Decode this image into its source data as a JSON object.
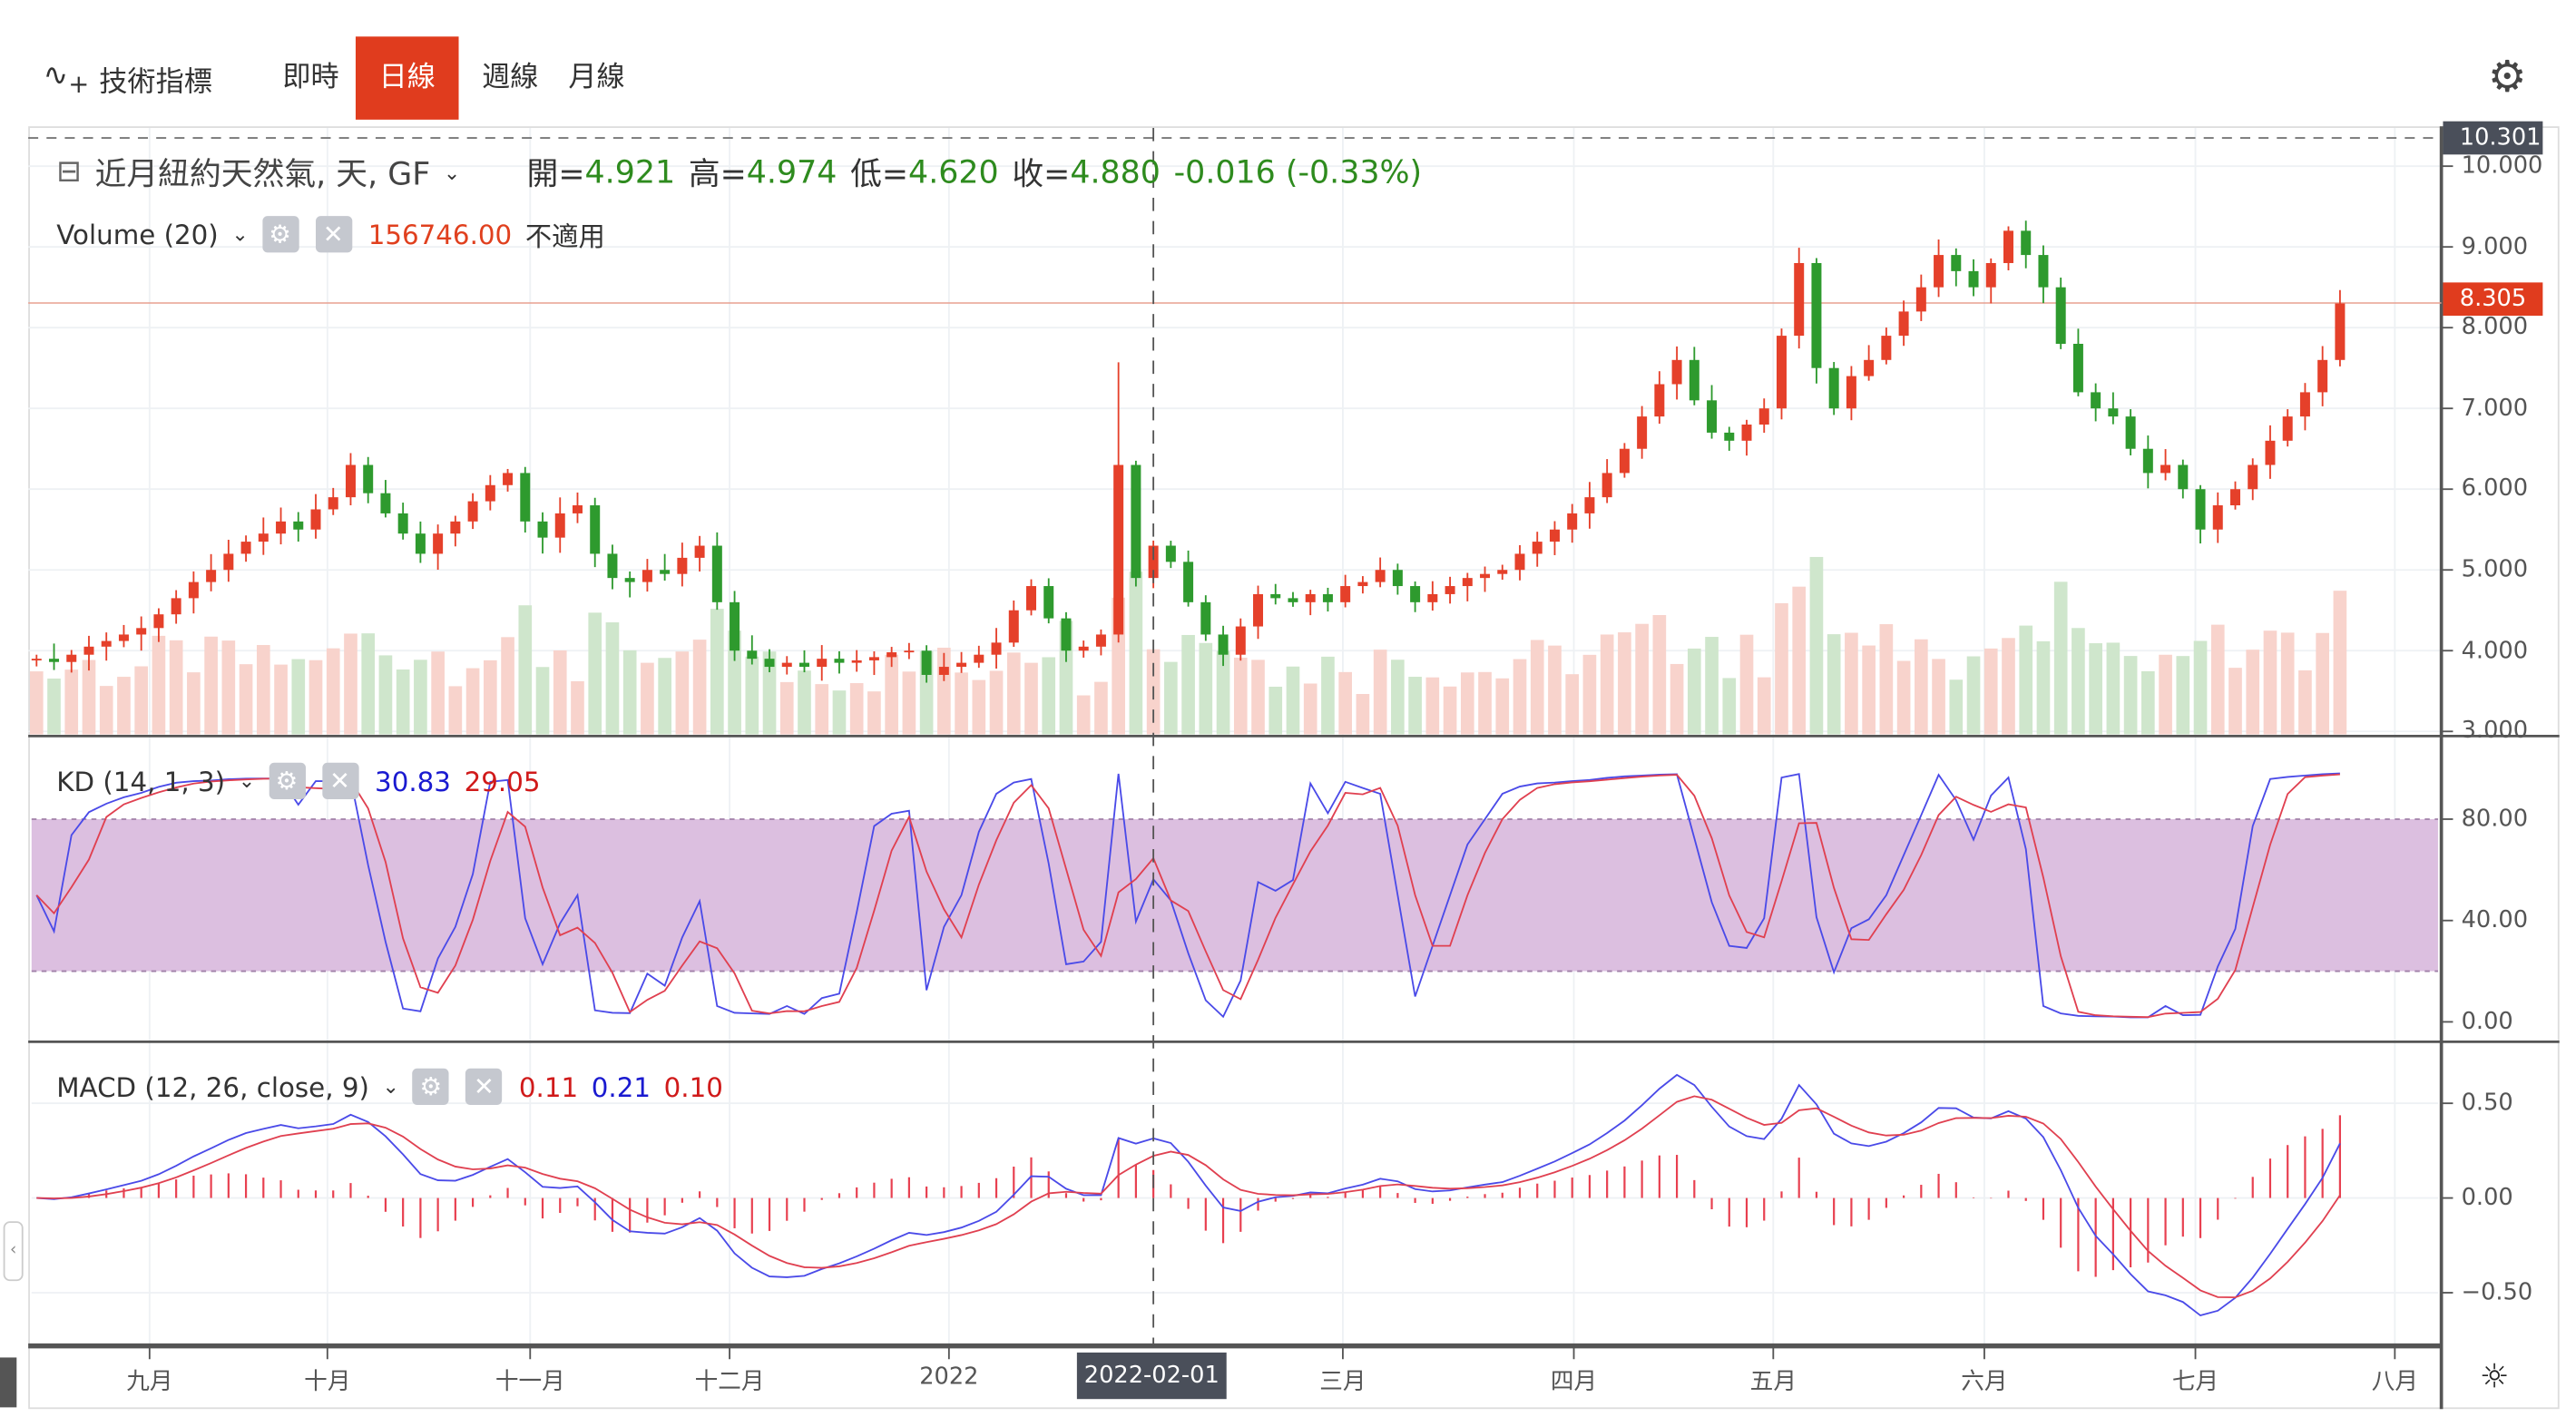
{
  "toolbar": {
    "indicator_label": "技術指標",
    "tabs": [
      {
        "label": "即時"
      },
      {
        "label": "日線",
        "active": true
      },
      {
        "label": "週線"
      },
      {
        "label": "月線"
      }
    ]
  },
  "legend": {
    "symbol": "近月紐約天然氣, 天, GF",
    "open_label": "開=",
    "open": "4.921",
    "high_label": "高=",
    "high": "4.974",
    "low_label": "低=",
    "low": "4.620",
    "close_label": "收=",
    "close": "4.880",
    "change": "-0.016 (-0.33%)"
  },
  "volume": {
    "label": "Volume (20)",
    "value": "156746.00",
    "na": "不適用"
  },
  "kd": {
    "label": "KD (14, 1, 3)",
    "k": "30.83",
    "d": "29.05"
  },
  "macd": {
    "label": "MACD (12, 26, close, 9)",
    "hist": "0.11",
    "macd": "0.21",
    "signal": "0.10"
  },
  "price_axis": {
    "labels": [
      "10.000",
      "9.000",
      "8.000",
      "7.000",
      "6.000",
      "5.000",
      "4.000",
      "3.000"
    ],
    "high_tag": "10.301",
    "last_tag": "8.305"
  },
  "kd_axis": [
    "80.00",
    "40.00",
    "0.00"
  ],
  "macd_axis": [
    "0.50",
    "0.00",
    "−0.50"
  ],
  "time_axis": [
    "九月",
    "十月",
    "十一月",
    "十二月",
    "2022",
    "三月",
    "四月",
    "五月",
    "六月",
    "七月",
    "八月"
  ],
  "crosshair_label": "2022-02-01",
  "colors": {
    "up": "#e5402a",
    "down": "#2e9a2e",
    "accent": "#e03c1e",
    "kd_k": "#4a4ae8",
    "kd_d": "#e04050",
    "band": "#dcbfe0"
  },
  "chart_data": {
    "type": "candlestick",
    "ylim": [
      3,
      10.3
    ],
    "closes": [
      3.9,
      3.86,
      3.95,
      4.05,
      4.12,
      4.2,
      4.28,
      4.45,
      4.65,
      4.85,
      5.0,
      5.2,
      5.35,
      5.45,
      5.6,
      5.5,
      5.75,
      5.9,
      6.3,
      5.95,
      5.7,
      5.45,
      5.2,
      5.45,
      5.6,
      5.85,
      6.05,
      6.2,
      5.6,
      5.4,
      5.7,
      5.8,
      5.2,
      4.9,
      4.85,
      5.0,
      4.95,
      5.15,
      5.3,
      4.6,
      4.0,
      3.9,
      3.8,
      3.85,
      3.8,
      3.9,
      3.85,
      3.88,
      3.92,
      3.98,
      4.0,
      3.7,
      3.8,
      3.85,
      3.95,
      4.1,
      4.5,
      4.8,
      4.4,
      4.0,
      4.05,
      4.2,
      6.3,
      4.9,
      5.3,
      5.1,
      4.6,
      4.2,
      3.95,
      4.3,
      4.7,
      4.65,
      4.6,
      4.7,
      4.6,
      4.8,
      4.85,
      5.0,
      4.8,
      4.6,
      4.7,
      4.8,
      4.9,
      4.95,
      5.0,
      5.2,
      5.35,
      5.5,
      5.7,
      5.9,
      6.2,
      6.5,
      6.9,
      7.3,
      7.6,
      7.1,
      6.7,
      6.6,
      6.8,
      7.0,
      7.9,
      8.8,
      7.5,
      7.0,
      7.4,
      7.6,
      7.9,
      8.2,
      8.5,
      8.9,
      8.7,
      8.5,
      8.8,
      9.2,
      8.9,
      8.5,
      7.8,
      7.2,
      7.0,
      6.9,
      6.5,
      6.2,
      6.3,
      6.0,
      5.5,
      5.8,
      6.0,
      6.3,
      6.6,
      6.9,
      7.2,
      7.6,
      8.3
    ]
  }
}
